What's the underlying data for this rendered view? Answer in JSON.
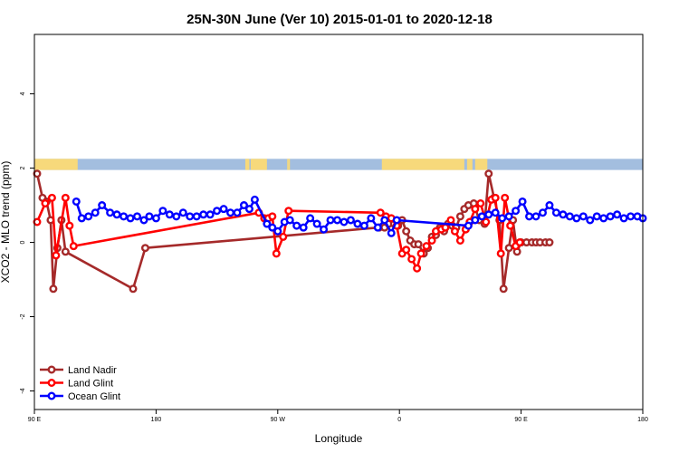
{
  "chart_data": {
    "type": "line",
    "title": "25N-30N June (Ver 10)   2015-01-01 to 2020-12-18",
    "xlabel": "Longitude",
    "ylabel": "XCO2 - MLO trend (ppm)",
    "xlim": [
      90,
      540
    ],
    "ylim": [
      -4.5,
      5.6
    ],
    "x_ticks": [
      {
        "value": 90,
        "label": "90 E"
      },
      {
        "value": 180,
        "label": "180"
      },
      {
        "value": 270,
        "label": "90 W"
      },
      {
        "value": 360,
        "label": "0"
      },
      {
        "value": 450,
        "label": "90 E"
      },
      {
        "value": 540,
        "label": "180"
      }
    ],
    "y_ticks": [
      {
        "value": -4,
        "label": "-4"
      },
      {
        "value": -2,
        "label": "-2"
      },
      {
        "value": 0,
        "label": "0"
      },
      {
        "value": 2,
        "label": "2"
      },
      {
        "value": 4,
        "label": "4"
      }
    ],
    "land_strip": {
      "y_range": [
        1.95,
        2.25
      ],
      "ocean_color": "#a3bedf",
      "land_color": "#f7d97b",
      "land_x_ranges": [
        [
          90,
          122
        ],
        [
          246,
          249
        ],
        [
          250,
          262
        ],
        [
          277,
          278
        ],
        [
          278,
          279
        ],
        [
          347,
          408
        ],
        [
          410,
          414
        ],
        [
          416,
          425
        ]
      ]
    },
    "legend_position": "bottom-left",
    "series": [
      {
        "name": "Land Nadir",
        "color": "#a52a2a",
        "x": [
          92,
          96,
          99,
          102,
          104,
          107,
          110,
          113,
          163,
          172,
          345,
          349,
          352,
          356,
          359,
          362,
          365,
          368,
          371,
          374,
          378,
          381,
          384,
          387,
          390,
          393,
          396,
          399,
          402,
          405,
          408,
          411,
          415,
          419,
          423,
          426,
          430,
          434,
          437,
          441,
          444,
          447,
          450,
          454,
          458,
          461,
          464,
          468,
          471
        ],
        "y": [
          1.85,
          1.2,
          1.1,
          0.6,
          -1.25,
          -0.15,
          0.6,
          -0.25,
          -1.25,
          -0.15,
          0.4,
          0.4,
          0.5,
          0.5,
          0.45,
          0.6,
          0.3,
          0.05,
          -0.05,
          -0.05,
          -0.3,
          -0.15,
          0.15,
          0.2,
          0.4,
          0.3,
          0.5,
          0.45,
          0.4,
          0.7,
          0.9,
          1.0,
          1.05,
          0.6,
          0.5,
          1.85,
          1.2,
          0.6,
          -1.25,
          -0.15,
          0.6,
          -0.25,
          0.0,
          0.0,
          0.0,
          0.0,
          0.0,
          0.0,
          0.0
        ]
      },
      {
        "name": "Land Glint",
        "color": "#ff0000",
        "x": [
          92,
          98,
          103,
          106,
          113,
          116,
          119,
          256,
          260,
          263,
          266,
          269,
          274,
          278,
          346,
          350,
          354,
          358,
          362,
          365,
          369,
          373,
          376,
          380,
          384,
          387,
          391,
          394,
          398,
          401,
          405,
          409,
          412,
          416,
          420,
          424,
          428,
          431,
          435,
          438,
          442,
          446,
          449
        ],
        "y": [
          0.55,
          1.05,
          1.2,
          -0.35,
          1.2,
          0.45,
          -0.1,
          0.8,
          0.65,
          0.65,
          0.7,
          -0.3,
          0.15,
          0.85,
          0.8,
          0.7,
          0.65,
          0.45,
          -0.3,
          -0.2,
          -0.45,
          -0.7,
          -0.3,
          -0.1,
          0.05,
          0.3,
          0.35,
          0.4,
          0.6,
          0.3,
          0.05,
          0.35,
          0.55,
          0.9,
          1.05,
          0.55,
          1.15,
          1.2,
          -0.3,
          1.2,
          0.45,
          -0.1,
          0.0
        ]
      },
      {
        "name": "Ocean Glint",
        "color": "#0000ff",
        "x": [
          121,
          125,
          130,
          135,
          140,
          146,
          151,
          156,
          161,
          166,
          171,
          175,
          180,
          185,
          190,
          195,
          200,
          205,
          210,
          215,
          220,
          225,
          230,
          235,
          240,
          245,
          249,
          253,
          262,
          266,
          270,
          275,
          279,
          284,
          289,
          294,
          299,
          304,
          309,
          314,
          319,
          324,
          329,
          334,
          339,
          344,
          349,
          354,
          358,
          411,
          416,
          421,
          426,
          431,
          436,
          441,
          446,
          451,
          456,
          461,
          466,
          471,
          476,
          481,
          486,
          491,
          496,
          501,
          506,
          511,
          516,
          521,
          526,
          531,
          536,
          540
        ],
        "y": [
          1.1,
          0.65,
          0.7,
          0.8,
          1.0,
          0.8,
          0.75,
          0.7,
          0.65,
          0.7,
          0.6,
          0.7,
          0.65,
          0.85,
          0.75,
          0.7,
          0.8,
          0.7,
          0.7,
          0.75,
          0.75,
          0.85,
          0.9,
          0.8,
          0.8,
          1.0,
          0.9,
          1.15,
          0.5,
          0.4,
          0.3,
          0.55,
          0.6,
          0.45,
          0.4,
          0.65,
          0.5,
          0.35,
          0.6,
          0.6,
          0.55,
          0.6,
          0.5,
          0.45,
          0.65,
          0.4,
          0.6,
          0.25,
          0.6,
          0.45,
          0.6,
          0.7,
          0.75,
          0.8,
          0.65,
          0.7,
          0.85,
          1.1,
          0.7,
          0.7,
          0.8,
          1.0,
          0.8,
          0.75,
          0.7,
          0.65,
          0.7,
          0.6,
          0.7,
          0.65,
          0.7,
          0.75,
          0.65,
          0.7,
          0.7,
          0.65
        ]
      }
    ]
  }
}
